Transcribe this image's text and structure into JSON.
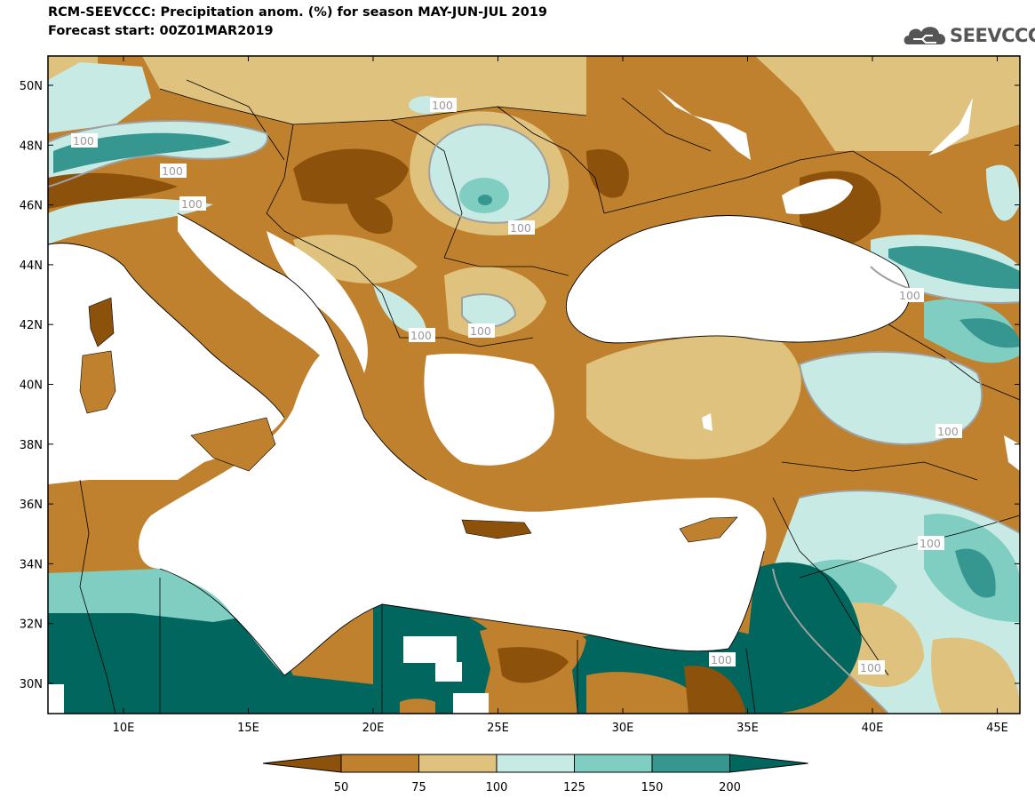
{
  "header": {
    "title": "RCM-SEEVCCC: Precipitation anom. (%) for season MAY-JUN-JUL 2019",
    "subtitle": "Forecast start: 00Z01MAR2019"
  },
  "logo": {
    "text": "SEEVCCC",
    "icon": "cloud-icon"
  },
  "map": {
    "lat_ticks": [
      "50N",
      "48N",
      "46N",
      "44N",
      "42N",
      "40N",
      "38N",
      "36N",
      "34N",
      "32N",
      "30N"
    ],
    "lon_ticks": [
      "10E",
      "15E",
      "20E",
      "25E",
      "30E",
      "35E",
      "40E",
      "45E"
    ],
    "contour_label": "100",
    "legend": {
      "labels": [
        "50",
        "75",
        "100",
        "125",
        "150",
        "200"
      ],
      "colors": [
        "#8c510a",
        "#bf812d",
        "#dfc27d",
        "#c7eae5",
        "#80cdc1",
        "#35978f",
        "#01665e"
      ]
    }
  },
  "chart_data": {
    "type": "heatmap",
    "title": "RCM-SEEVCCC: Precipitation anom. (%) for season MAY-JUN-JUL 2019",
    "subtitle": "Forecast start: 00Z01MAR2019",
    "variable": "Precipitation anomaly (%)",
    "season": "MAY-JUN-JUL 2019",
    "xlabel": "",
    "ylabel": "",
    "lon_range": [
      7,
      46
    ],
    "lat_range": [
      29,
      51
    ],
    "color_levels": [
      50,
      75,
      100,
      125,
      150,
      200
    ],
    "color_bins": [
      {
        "range": "<50",
        "color": "#8c510a"
      },
      {
        "range": "50-75",
        "color": "#bf812d"
      },
      {
        "range": "75-100",
        "color": "#dfc27d"
      },
      {
        "range": "100-125",
        "color": "#c7eae5"
      },
      {
        "range": "125-150",
        "color": "#80cdc1"
      },
      {
        "range": "150-200",
        "color": "#35978f"
      },
      {
        "range": ">200",
        "color": "#01665e"
      }
    ]
  }
}
